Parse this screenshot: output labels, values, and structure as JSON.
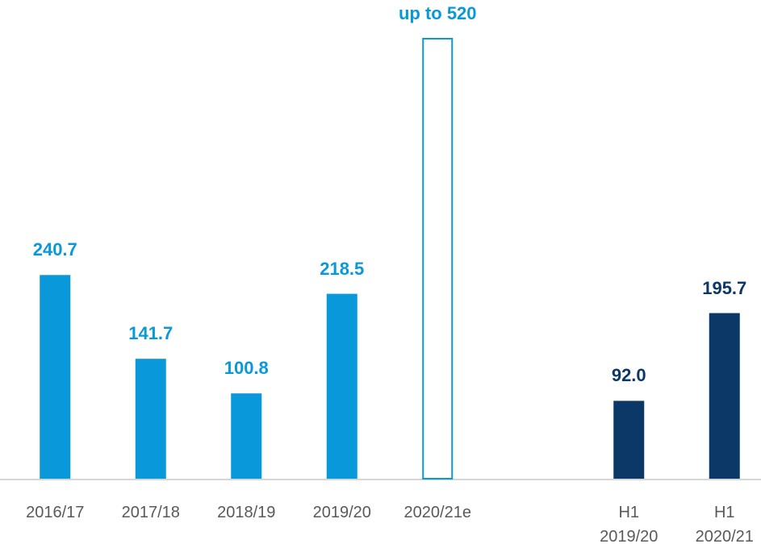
{
  "chart_data": {
    "type": "bar",
    "categories": [
      "2016/17",
      "2017/18",
      "2018/19",
      "2019/20",
      "2020/21e",
      null,
      "H1 2019/20",
      "H1 2020/21"
    ],
    "values": [
      240.7,
      141.7,
      100.8,
      218.5,
      520,
      null,
      92.0,
      195.7
    ],
    "value_labels": [
      "240.7",
      "141.7",
      "100.8",
      "218.5",
      "up to 520",
      null,
      "92.0",
      "195.7"
    ],
    "colors": [
      "#0999db",
      "#0999db",
      "#0999db",
      "#0999db",
      "#0999db",
      null,
      "#0b3866",
      "#0b3866"
    ],
    "styles": [
      "filled",
      "filled",
      "filled",
      "filled",
      "outline",
      null,
      "filled",
      "filled"
    ]
  }
}
